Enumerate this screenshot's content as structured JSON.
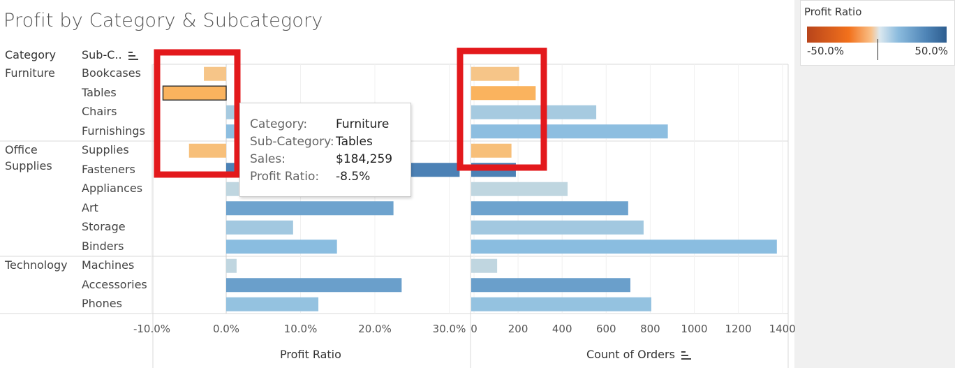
{
  "title": "Profit by Category & Subcategory",
  "headers": {
    "category": "Category",
    "subcategory": "Sub-C.."
  },
  "categories": [
    {
      "name": "Furniture",
      "lines": [
        "Furniture"
      ]
    },
    {
      "name": "Office Supplies",
      "lines": [
        "Office",
        "Supplies"
      ]
    },
    {
      "name": "Technology",
      "lines": [
        "Technology"
      ]
    }
  ],
  "chart_data": [
    {
      "type": "bar",
      "orientation": "horizontal",
      "xlabel": "Profit Ratio",
      "xlim": [
        -10.0,
        35.0
      ],
      "tick_labels": [
        "-10.0%",
        "0.0%",
        "10.0%",
        "20.0%",
        "30.0%"
      ],
      "categories": [
        "Bookcases",
        "Tables",
        "Chairs",
        "Furnishings",
        "Supplies",
        "Fasteners",
        "Appliances",
        "Art",
        "Storage",
        "Binders",
        "Machines",
        "Accessories",
        "Phones"
      ],
      "groups": [
        "Furniture",
        "Furniture",
        "Furniture",
        "Furniture",
        "Office Supplies",
        "Office Supplies",
        "Office Supplies",
        "Office Supplies",
        "Office Supplies",
        "Office Supplies",
        "Technology",
        "Technology",
        "Technology"
      ],
      "values": [
        -3.0,
        -8.5,
        8.1,
        14.2,
        -5.0,
        31.4,
        1.7,
        22.5,
        9.0,
        14.9,
        1.4,
        23.6,
        12.4
      ],
      "color_by": "Profit Ratio"
    },
    {
      "type": "bar",
      "orientation": "horizontal",
      "xlabel": "Count of Orders",
      "xlim": [
        0,
        1400
      ],
      "tick_labels": [
        "0",
        "200",
        "400",
        "600",
        "800",
        "1000",
        "1200",
        "1400"
      ],
      "categories": [
        "Bookcases",
        "Tables",
        "Chairs",
        "Furnishings",
        "Supplies",
        "Fasteners",
        "Appliances",
        "Art",
        "Storage",
        "Binders",
        "Machines",
        "Accessories",
        "Phones"
      ],
      "values": [
        205,
        280,
        555,
        880,
        170,
        190,
        425,
        700,
        770,
        1375,
        105,
        710,
        805
      ],
      "color_by": "Profit Ratio"
    }
  ],
  "legend": {
    "title": "Profit Ratio",
    "min_label": "-50.0%",
    "max_label": "50.0%"
  },
  "tooltip": {
    "rows": [
      {
        "key": "Category:",
        "value": "Furniture"
      },
      {
        "key": "Sub-Category:",
        "value": "Tables"
      },
      {
        "key": "Sales:",
        "value": "$184,259"
      },
      {
        "key": "Profit Ratio:",
        "value": "-8.5%"
      }
    ]
  },
  "colors": {
    "highlight_box": "#e3191c",
    "negative": "#f2711c",
    "positive": "#2d5d8f"
  }
}
